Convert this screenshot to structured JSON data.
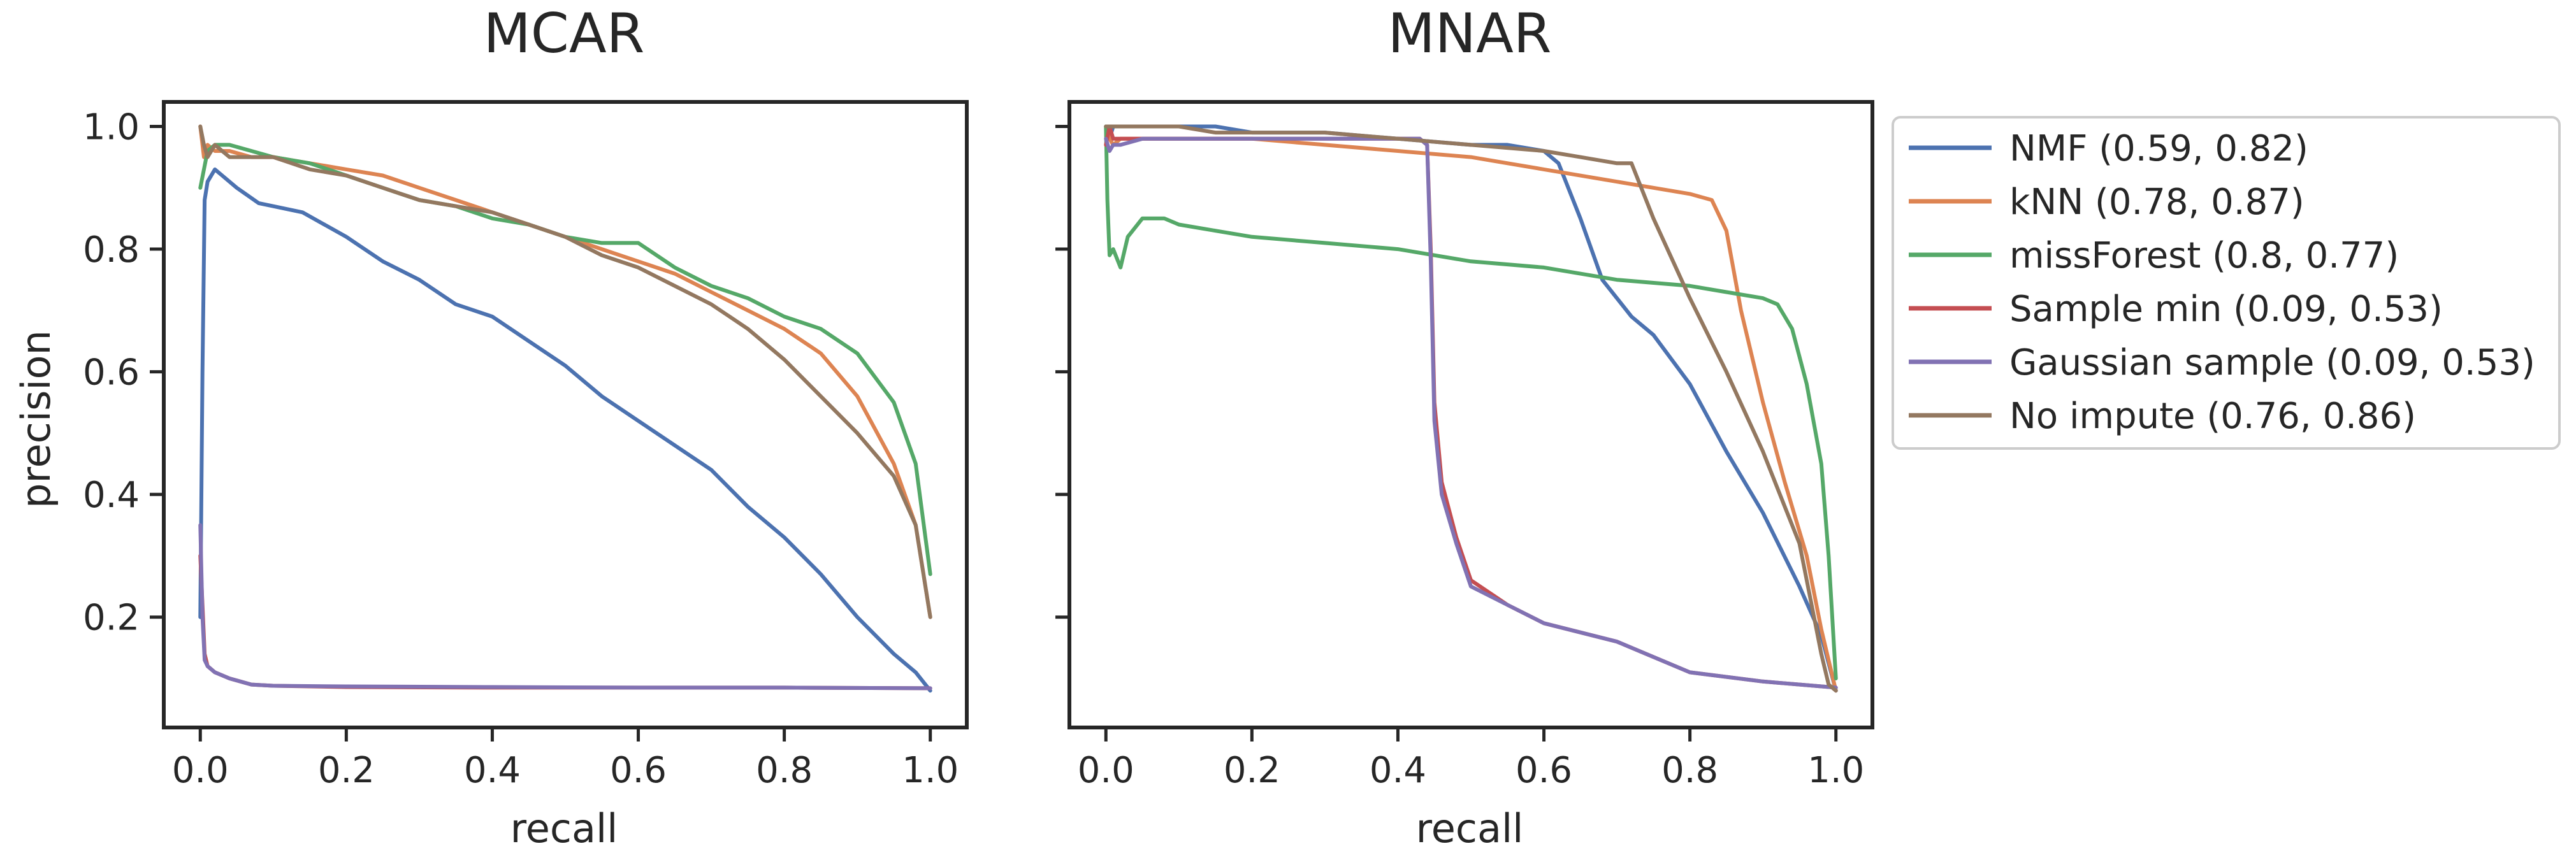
{
  "colors": {
    "NMF": "#4c72b0",
    "kNN": "#dd8452",
    "missForest": "#55a868",
    "Sample min": "#c44e52",
    "Gaussian sample": "#8172b3",
    "No impute": "#937860",
    "axes": "#262626",
    "background": "#ffffff"
  },
  "legend": {
    "placement": "outside-right-top",
    "entries": [
      "NMF (0.59, 0.82)",
      "kNN (0.78, 0.87)",
      "missForest (0.8, 0.77)",
      "Sample min (0.09, 0.53)",
      "Gaussian sample (0.09, 0.53)",
      "No impute (0.76, 0.86)"
    ]
  },
  "chart_data": [
    {
      "type": "line",
      "title": "MCAR",
      "xlabel": "recall",
      "ylabel": "precision",
      "xlim": [
        -0.05,
        1.05
      ],
      "ylim": [
        0.02,
        1.04
      ],
      "xticks": [
        "0.0",
        "0.2",
        "0.4",
        "0.6",
        "0.8",
        "1.0"
      ],
      "yticks": [
        "0.2",
        "0.4",
        "0.6",
        "0.8",
        "1.0"
      ],
      "grid": false,
      "series": [
        {
          "name": "NMF",
          "x": [
            0,
            0.003,
            0.006,
            0.01,
            0.02,
            0.03,
            0.05,
            0.08,
            0.1,
            0.14,
            0.2,
            0.25,
            0.3,
            0.35,
            0.4,
            0.45,
            0.5,
            0.55,
            0.6,
            0.65,
            0.7,
            0.75,
            0.8,
            0.85,
            0.9,
            0.95,
            0.98,
            1.0
          ],
          "y": [
            0.2,
            0.6,
            0.88,
            0.91,
            0.93,
            0.92,
            0.9,
            0.875,
            0.87,
            0.86,
            0.82,
            0.78,
            0.75,
            0.71,
            0.69,
            0.65,
            0.61,
            0.56,
            0.52,
            0.48,
            0.44,
            0.38,
            0.33,
            0.27,
            0.2,
            0.14,
            0.11,
            0.08
          ]
        },
        {
          "name": "kNN",
          "x": [
            0,
            0.005,
            0.01,
            0.02,
            0.04,
            0.07,
            0.1,
            0.15,
            0.2,
            0.25,
            0.3,
            0.35,
            0.4,
            0.45,
            0.5,
            0.55,
            0.6,
            0.65,
            0.7,
            0.75,
            0.8,
            0.85,
            0.9,
            0.95,
            0.98,
            1.0
          ],
          "y": [
            1.0,
            0.95,
            0.97,
            0.96,
            0.96,
            0.95,
            0.95,
            0.94,
            0.93,
            0.92,
            0.9,
            0.88,
            0.86,
            0.84,
            0.82,
            0.8,
            0.78,
            0.76,
            0.73,
            0.7,
            0.67,
            0.63,
            0.56,
            0.45,
            0.35,
            0.2
          ]
        },
        {
          "name": "missForest",
          "x": [
            0,
            0.005,
            0.01,
            0.02,
            0.04,
            0.07,
            0.1,
            0.15,
            0.2,
            0.25,
            0.3,
            0.35,
            0.4,
            0.45,
            0.5,
            0.55,
            0.6,
            0.65,
            0.7,
            0.75,
            0.8,
            0.85,
            0.9,
            0.95,
            0.98,
            1.0
          ],
          "y": [
            0.9,
            0.93,
            0.96,
            0.97,
            0.97,
            0.96,
            0.95,
            0.94,
            0.92,
            0.9,
            0.88,
            0.87,
            0.85,
            0.84,
            0.82,
            0.81,
            0.81,
            0.77,
            0.74,
            0.72,
            0.69,
            0.67,
            0.63,
            0.55,
            0.45,
            0.27
          ]
        },
        {
          "name": "Sample min",
          "x": [
            0,
            0.003,
            0.006,
            0.01,
            0.02,
            0.04,
            0.07,
            0.1,
            0.2,
            0.4,
            0.6,
            0.8,
            1.0
          ],
          "y": [
            0.3,
            0.22,
            0.14,
            0.12,
            0.11,
            0.1,
            0.09,
            0.088,
            0.086,
            0.085,
            0.085,
            0.085,
            0.084
          ]
        },
        {
          "name": "Gaussian sample",
          "x": [
            0,
            0.003,
            0.006,
            0.01,
            0.02,
            0.04,
            0.07,
            0.1,
            0.2,
            0.4,
            0.6,
            0.8,
            1.0
          ],
          "y": [
            0.35,
            0.2,
            0.13,
            0.12,
            0.11,
            0.1,
            0.09,
            0.088,
            0.087,
            0.086,
            0.085,
            0.085,
            0.084
          ]
        },
        {
          "name": "No impute",
          "x": [
            0,
            0.005,
            0.01,
            0.02,
            0.04,
            0.07,
            0.1,
            0.15,
            0.2,
            0.25,
            0.3,
            0.35,
            0.4,
            0.45,
            0.5,
            0.55,
            0.6,
            0.65,
            0.7,
            0.75,
            0.8,
            0.85,
            0.9,
            0.95,
            0.98,
            1.0
          ],
          "y": [
            1.0,
            0.97,
            0.95,
            0.97,
            0.95,
            0.95,
            0.95,
            0.93,
            0.92,
            0.9,
            0.88,
            0.87,
            0.86,
            0.84,
            0.82,
            0.79,
            0.77,
            0.74,
            0.71,
            0.67,
            0.62,
            0.56,
            0.5,
            0.43,
            0.35,
            0.2
          ]
        }
      ]
    },
    {
      "type": "line",
      "title": "MNAR",
      "xlabel": "recall",
      "ylabel": "",
      "xlim": [
        -0.05,
        1.05
      ],
      "ylim": [
        0.02,
        1.04
      ],
      "xticks": [
        "0.0",
        "0.2",
        "0.4",
        "0.6",
        "0.8",
        "1.0"
      ],
      "yticks": [],
      "grid": false,
      "series": [
        {
          "name": "NMF",
          "x": [
            0,
            0.005,
            0.01,
            0.02,
            0.05,
            0.1,
            0.15,
            0.2,
            0.3,
            0.4,
            0.5,
            0.55,
            0.6,
            0.62,
            0.65,
            0.68,
            0.7,
            0.72,
            0.75,
            0.8,
            0.85,
            0.9,
            0.95,
            0.98,
            1.0
          ],
          "y": [
            1.0,
            0.98,
            1.0,
            1.0,
            1.0,
            1.0,
            1.0,
            0.99,
            0.99,
            0.98,
            0.97,
            0.97,
            0.96,
            0.94,
            0.85,
            0.75,
            0.72,
            0.69,
            0.66,
            0.58,
            0.47,
            0.37,
            0.25,
            0.17,
            0.08
          ]
        },
        {
          "name": "kNN",
          "x": [
            0,
            0.005,
            0.01,
            0.02,
            0.05,
            0.1,
            0.2,
            0.3,
            0.4,
            0.5,
            0.6,
            0.7,
            0.75,
            0.8,
            0.83,
            0.85,
            0.87,
            0.9,
            0.93,
            0.96,
            0.98,
            1.0
          ],
          "y": [
            1.0,
            0.98,
            0.97,
            0.98,
            0.98,
            0.98,
            0.98,
            0.97,
            0.96,
            0.95,
            0.93,
            0.91,
            0.9,
            0.89,
            0.88,
            0.83,
            0.7,
            0.55,
            0.42,
            0.3,
            0.18,
            0.08
          ]
        },
        {
          "name": "missForest",
          "x": [
            0,
            0.002,
            0.005,
            0.01,
            0.02,
            0.03,
            0.05,
            0.08,
            0.1,
            0.15,
            0.2,
            0.3,
            0.4,
            0.5,
            0.6,
            0.7,
            0.8,
            0.85,
            0.9,
            0.92,
            0.94,
            0.96,
            0.98,
            0.99,
            1.0
          ],
          "y": [
            1.0,
            0.88,
            0.79,
            0.8,
            0.77,
            0.82,
            0.85,
            0.85,
            0.84,
            0.83,
            0.82,
            0.81,
            0.8,
            0.78,
            0.77,
            0.75,
            0.74,
            0.73,
            0.72,
            0.71,
            0.67,
            0.58,
            0.45,
            0.3,
            0.1
          ]
        },
        {
          "name": "Sample min",
          "x": [
            0,
            0.005,
            0.01,
            0.02,
            0.05,
            0.1,
            0.2,
            0.3,
            0.4,
            0.43,
            0.44,
            0.445,
            0.45,
            0.46,
            0.48,
            0.5,
            0.55,
            0.6,
            0.7,
            0.8,
            0.9,
            1.0
          ],
          "y": [
            0.97,
            1.0,
            0.98,
            0.98,
            0.98,
            0.98,
            0.98,
            0.98,
            0.98,
            0.98,
            0.97,
            0.8,
            0.55,
            0.42,
            0.33,
            0.26,
            0.22,
            0.19,
            0.16,
            0.11,
            0.095,
            0.085
          ]
        },
        {
          "name": "Gaussian sample",
          "x": [
            0,
            0.005,
            0.01,
            0.02,
            0.05,
            0.1,
            0.2,
            0.3,
            0.4,
            0.43,
            0.44,
            0.445,
            0.45,
            0.46,
            0.48,
            0.5,
            0.55,
            0.6,
            0.7,
            0.8,
            0.9,
            1.0
          ],
          "y": [
            0.98,
            0.96,
            0.97,
            0.97,
            0.98,
            0.98,
            0.98,
            0.98,
            0.98,
            0.98,
            0.97,
            0.78,
            0.52,
            0.4,
            0.32,
            0.25,
            0.22,
            0.19,
            0.16,
            0.11,
            0.095,
            0.085
          ]
        },
        {
          "name": "No impute",
          "x": [
            0,
            0.01,
            0.05,
            0.1,
            0.15,
            0.2,
            0.3,
            0.4,
            0.5,
            0.6,
            0.65,
            0.7,
            0.72,
            0.75,
            0.8,
            0.85,
            0.9,
            0.93,
            0.95,
            0.97,
            0.98,
            0.99,
            1.0
          ],
          "y": [
            1.0,
            1.0,
            1.0,
            1.0,
            0.99,
            0.99,
            0.99,
            0.98,
            0.97,
            0.96,
            0.95,
            0.94,
            0.94,
            0.85,
            0.72,
            0.6,
            0.47,
            0.38,
            0.32,
            0.2,
            0.14,
            0.09,
            0.08
          ]
        }
      ]
    }
  ]
}
